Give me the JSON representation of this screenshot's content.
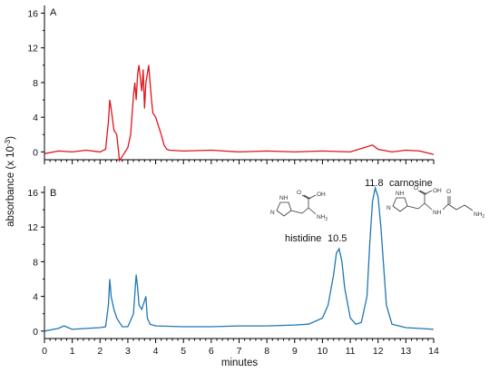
{
  "chart_data": [
    {
      "type": "line",
      "panel": "A",
      "xlim": [
        0,
        14
      ],
      "ylim": [
        -1,
        16.5
      ],
      "yticks": [
        0,
        4,
        8,
        12,
        16
      ],
      "color": "#e0141c",
      "series": [
        {
          "x": [
            0,
            0.5,
            1,
            1.5,
            2,
            2.2,
            2.3,
            2.35,
            2.4,
            2.5,
            2.6,
            2.65,
            2.7,
            2.8,
            3.0,
            3.1,
            3.2,
            3.25,
            3.3,
            3.35,
            3.4,
            3.45,
            3.5,
            3.55,
            3.6,
            3.65,
            3.7,
            3.75,
            3.8,
            3.85,
            3.9,
            4.0,
            4.1,
            4.2,
            4.3,
            4.4,
            4.5,
            5.0,
            6,
            7,
            8,
            9,
            10,
            11,
            11.5,
            11.8,
            12,
            12.5,
            13,
            13.5,
            14
          ],
          "y": [
            -0.2,
            0.1,
            0,
            0.2,
            0,
            0.3,
            3.5,
            6.0,
            5.0,
            2.5,
            2.0,
            0.5,
            -1.0,
            -0.5,
            0.5,
            2.0,
            6.5,
            8.0,
            6.0,
            9.0,
            10.0,
            8.5,
            7.0,
            9.5,
            5.0,
            8.0,
            9.0,
            10.0,
            8.0,
            6.0,
            4.5,
            4.0,
            3.0,
            2.0,
            0.8,
            0.3,
            0.2,
            0.1,
            0.2,
            0,
            0.1,
            0,
            0.1,
            0,
            0.5,
            0.8,
            0.3,
            0,
            0.2,
            0.1,
            -0.3
          ]
        }
      ]
    },
    {
      "type": "line",
      "panel": "B",
      "xlim": [
        0,
        14
      ],
      "ylim": [
        -0.5,
        16.5
      ],
      "yticks": [
        0,
        4,
        8,
        12,
        16
      ],
      "color": "#1f77b4",
      "series": [
        {
          "x": [
            0,
            0.5,
            0.7,
            1.0,
            1.5,
            2.0,
            2.2,
            2.3,
            2.35,
            2.4,
            2.5,
            2.6,
            2.7,
            2.8,
            3.0,
            3.2,
            3.3,
            3.35,
            3.4,
            3.5,
            3.6,
            3.65,
            3.7,
            3.8,
            4.0,
            5,
            6,
            7,
            8,
            9,
            9.5,
            10.0,
            10.2,
            10.4,
            10.5,
            10.6,
            10.7,
            10.8,
            11.0,
            11.2,
            11.4,
            11.6,
            11.7,
            11.8,
            11.9,
            12.0,
            12.1,
            12.3,
            12.5,
            13,
            13.5,
            14
          ],
          "y": [
            0,
            0.3,
            0.6,
            0.2,
            0.3,
            0.4,
            0.5,
            3.0,
            6.0,
            4.0,
            2.5,
            1.5,
            1.0,
            0.5,
            0.5,
            2.0,
            6.5,
            5.0,
            3.0,
            2.5,
            3.5,
            4.0,
            1.5,
            0.8,
            0.6,
            0.5,
            0.5,
            0.6,
            0.6,
            0.7,
            0.8,
            1.5,
            3.0,
            6.5,
            9.0,
            9.5,
            8.0,
            5.0,
            1.5,
            0.8,
            1.0,
            4.0,
            10.0,
            15.0,
            16.5,
            15.5,
            12.0,
            3.0,
            0.8,
            0.4,
            0.3,
            0.2
          ]
        }
      ]
    }
  ],
  "axes": {
    "x_tick_labels": [
      "0",
      "1",
      "2",
      "3",
      "4",
      "5",
      "6",
      "7",
      "8",
      "9",
      "10",
      "11",
      "12",
      "13",
      "14"
    ],
    "xlabel": "minutes",
    "ylabel": "absorbance (x 10",
    "ylabel_exponent": "-3",
    "ylabel_close": ")"
  },
  "annotations": {
    "panel_a": "A",
    "panel_b": "B",
    "histidine_label": "histidine",
    "histidine_time": "10.5",
    "carnosine_time": "11.8",
    "carnosine_label": "carnosine"
  },
  "structures": {
    "nh": "NH",
    "n": "N",
    "oh": "OH",
    "o": "O",
    "nh2": "NH",
    "nh2_sub": "2",
    "nh_link": "NH"
  }
}
